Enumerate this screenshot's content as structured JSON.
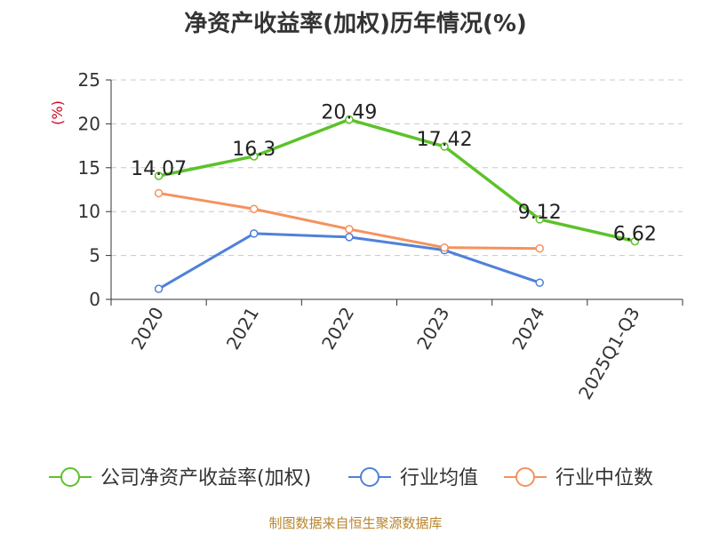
{
  "chart_data": {
    "type": "line",
    "title": "净资产收益率(加权)历年情况(%)",
    "ylabel": "(%)",
    "ylim": [
      0,
      25
    ],
    "yticks": [
      0,
      5,
      10,
      15,
      20,
      25
    ],
    "categories": [
      "2020",
      "2021",
      "2022",
      "2023",
      "2024",
      "2025Q1-Q3"
    ],
    "grid": true,
    "legend_position": "bottom",
    "series": [
      {
        "name": "公司净资产收益率(加权)",
        "color": "#5cc22a",
        "values": [
          14.07,
          16.3,
          20.49,
          17.42,
          9.12,
          6.62
        ],
        "labels": [
          "14.07",
          "16.3",
          "20.49",
          "17.42",
          "9.12",
          "6.62"
        ],
        "show_labels": true,
        "wide": true
      },
      {
        "name": "行业均值",
        "color": "#4f81d9",
        "values": [
          1.2,
          7.5,
          7.1,
          5.6,
          1.9,
          null
        ],
        "show_labels": false,
        "wide": false
      },
      {
        "name": "行业中位数",
        "color": "#f5925e",
        "values": [
          12.1,
          10.3,
          8.0,
          5.9,
          5.8,
          null
        ],
        "show_labels": false,
        "wide": false
      }
    ]
  },
  "source": "制图数据来自恒生聚源数据库"
}
